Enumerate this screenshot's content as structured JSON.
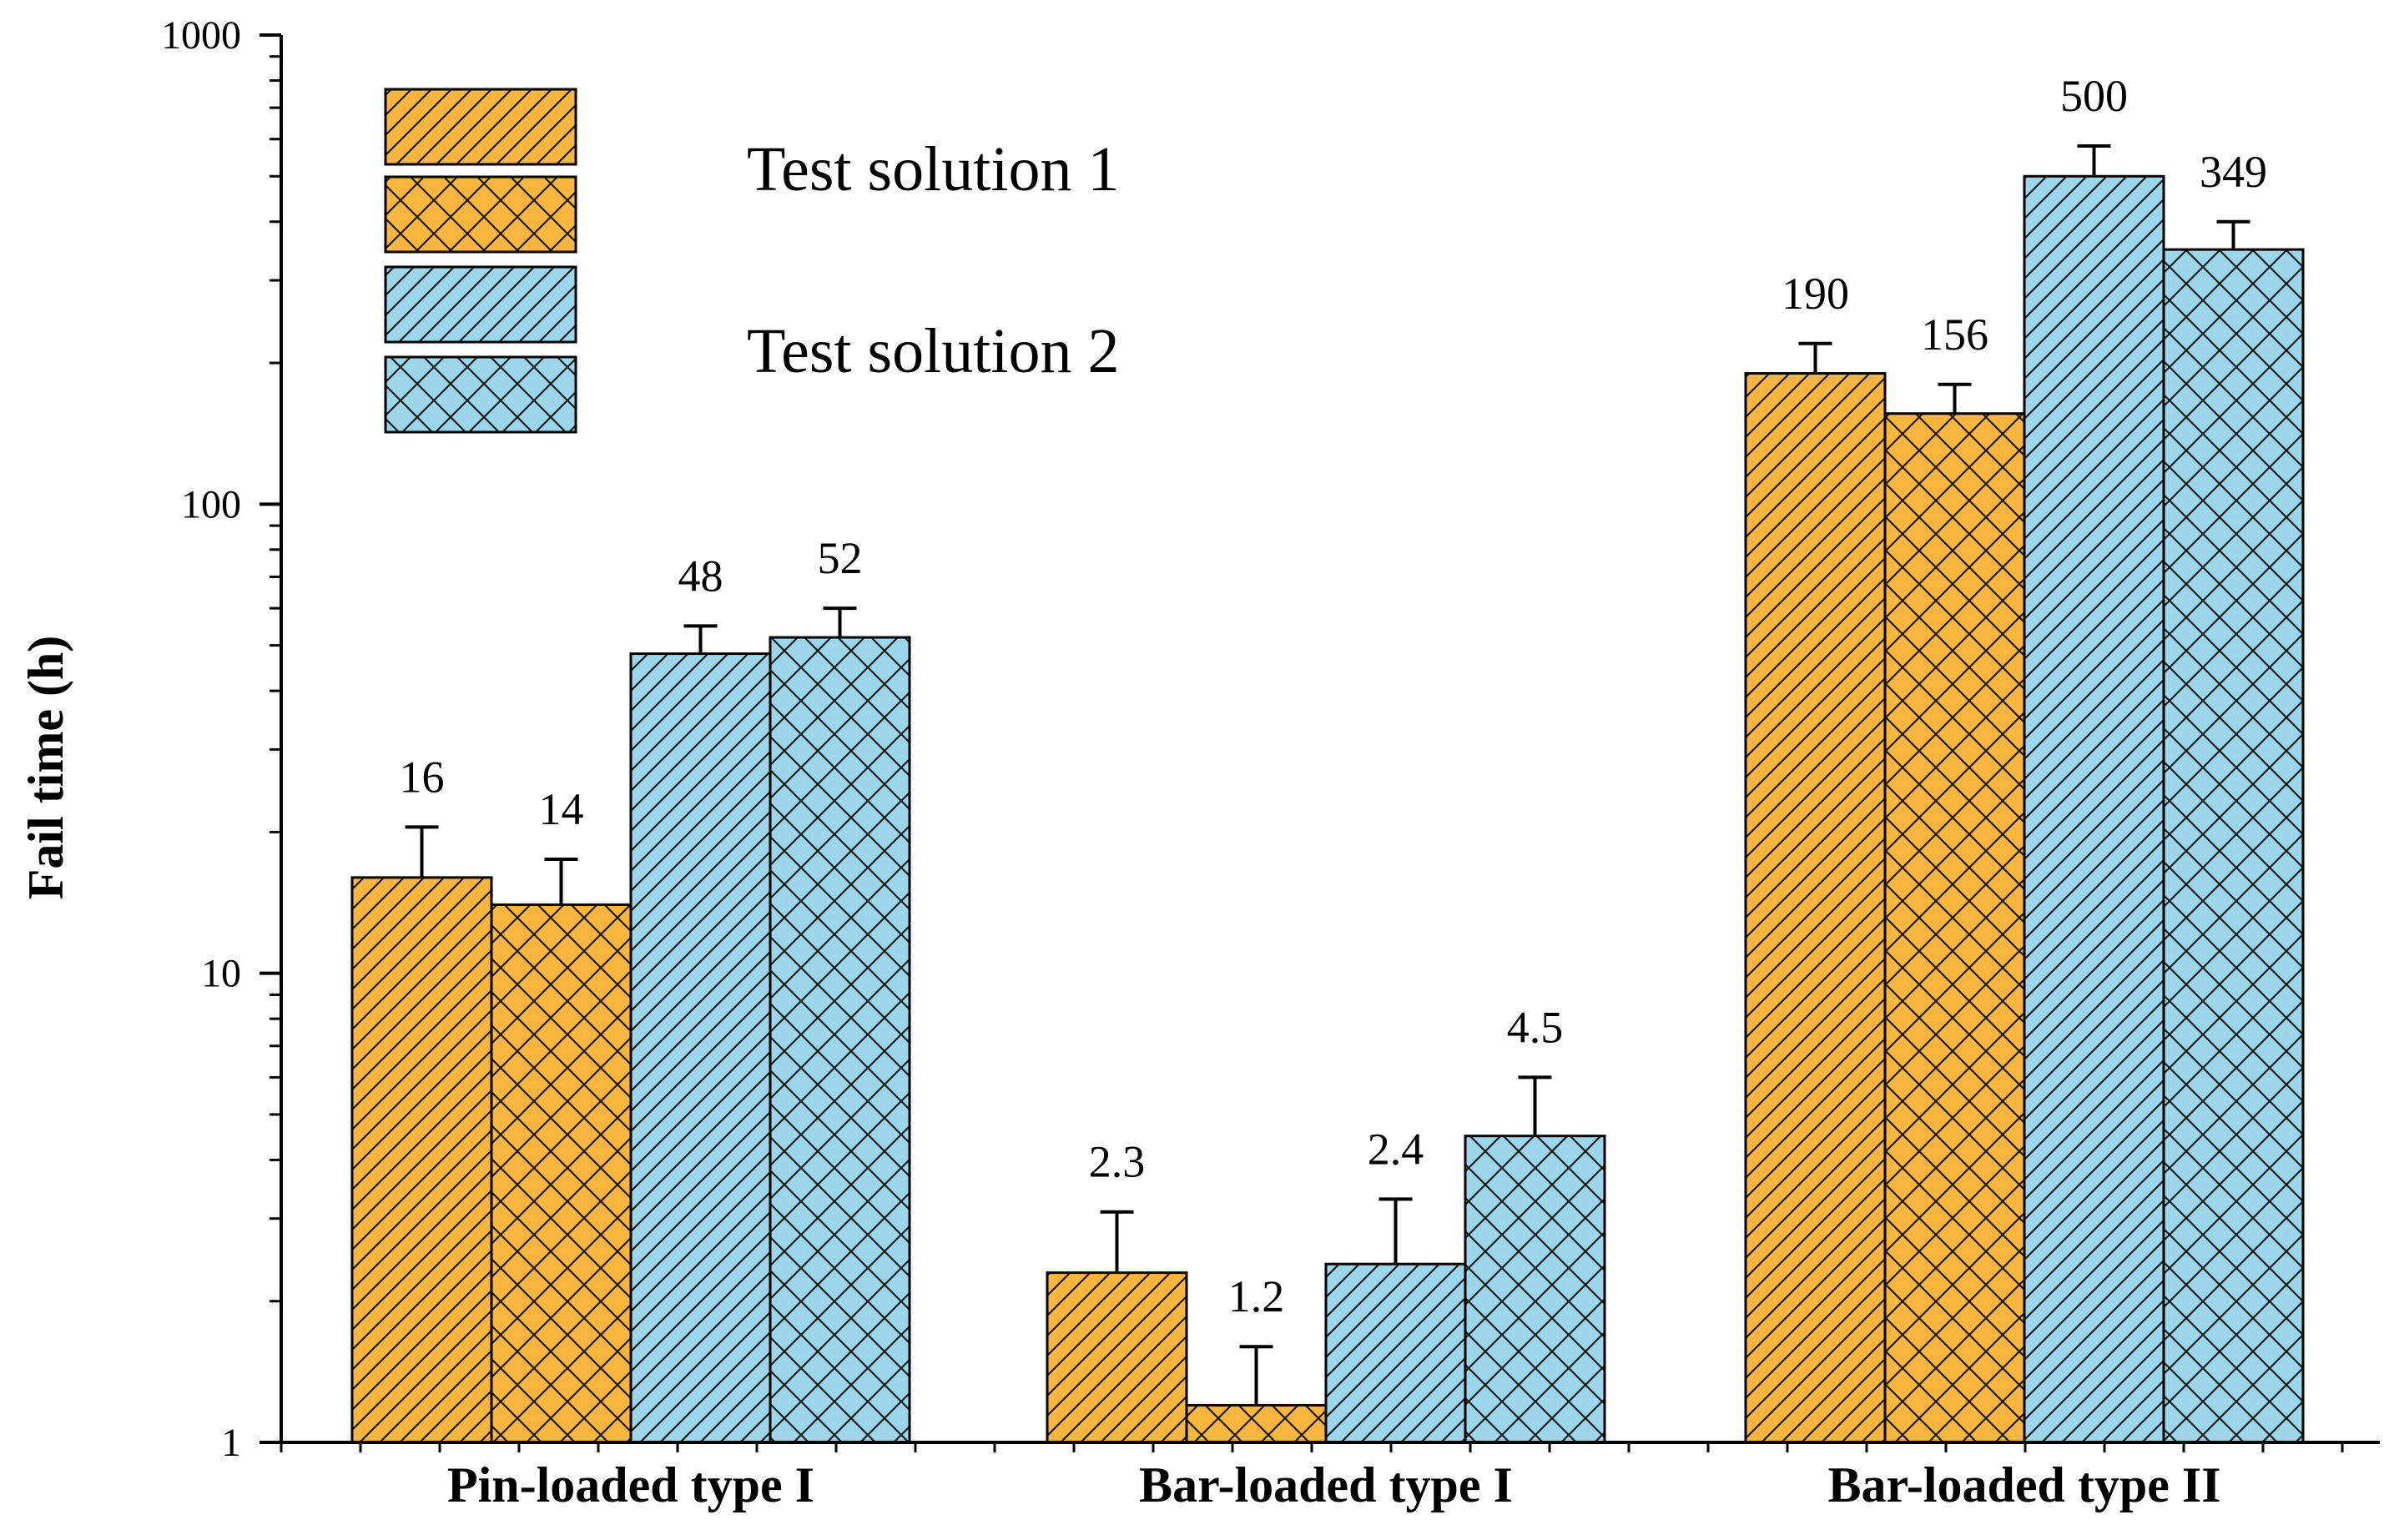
{
  "chart_data": {
    "type": "bar",
    "ylabel": "Fail time (h)",
    "xlabel": "",
    "yscale": "log",
    "ylim": [
      1,
      1000
    ],
    "y_ticks": [
      1,
      10,
      100,
      1000
    ],
    "y_tick_labels": [
      "1",
      "10",
      "100",
      "1000"
    ],
    "categories": [
      "Pin-loaded type I",
      "Bar-loaded type I",
      "Bar-loaded type II"
    ],
    "bars": [
      {
        "category": 0,
        "color": "#FBB63F",
        "hatch": "diag",
        "value": 16,
        "label": "16",
        "err_top": 20.5
      },
      {
        "category": 0,
        "color": "#FBB63F",
        "hatch": "cross",
        "value": 14,
        "label": "14",
        "err_top": 17.5
      },
      {
        "category": 0,
        "color": "#9DD6EB",
        "hatch": "diag",
        "value": 48,
        "label": "48",
        "err_top": 55
      },
      {
        "category": 0,
        "color": "#9DD6EB",
        "hatch": "cross",
        "value": 52,
        "label": "52",
        "err_top": 60
      },
      {
        "category": 1,
        "color": "#FBB63F",
        "hatch": "diag",
        "value": 2.3,
        "label": "2.3",
        "err_top": 3.1
      },
      {
        "category": 1,
        "color": "#FBB63F",
        "hatch": "cross",
        "value": 1.2,
        "label": "1.2",
        "err_top": 1.6
      },
      {
        "category": 1,
        "color": "#9DD6EB",
        "hatch": "diag",
        "value": 2.4,
        "label": "2.4",
        "err_top": 3.3
      },
      {
        "category": 1,
        "color": "#9DD6EB",
        "hatch": "cross",
        "value": 4.5,
        "label": "4.5",
        "err_top": 6.0
      },
      {
        "category": 2,
        "color": "#FBB63F",
        "hatch": "diag",
        "value": 190,
        "label": "190",
        "err_top": 220
      },
      {
        "category": 2,
        "color": "#FBB63F",
        "hatch": "cross",
        "value": 156,
        "label": "156",
        "err_top": 180
      },
      {
        "category": 2,
        "color": "#9DD6EB",
        "hatch": "diag",
        "value": 500,
        "label": "500",
        "err_top": 580
      },
      {
        "category": 2,
        "color": "#9DD6EB",
        "hatch": "cross",
        "value": 349,
        "label": "349",
        "err_top": 400
      }
    ],
    "legend": {
      "placement": "top-left",
      "swatches": [
        {
          "color": "#FBB63F",
          "hatch": "diag"
        },
        {
          "color": "#FBB63F",
          "hatch": "cross"
        },
        {
          "color": "#9DD6EB",
          "hatch": "diag"
        },
        {
          "color": "#9DD6EB",
          "hatch": "cross"
        }
      ],
      "entries": [
        "Test solution 1",
        "Test solution 2"
      ]
    }
  }
}
